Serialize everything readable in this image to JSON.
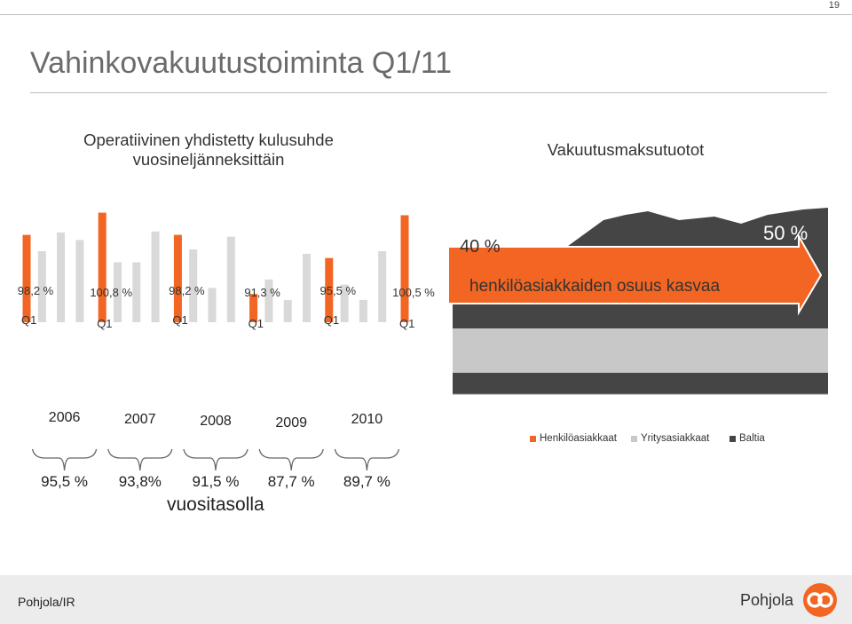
{
  "page_number": "19",
  "title": "Vahinkovakuutustoiminta Q1/11",
  "left_chart": {
    "subtitle_line1": "Operatiivinen yhdistetty kulusuhde",
    "subtitle_line2": "vuosineljänneksittäin",
    "annual_caption": "vuositasolla"
  },
  "right_chart": {
    "subtitle": "Vakuutusmaksutuotot",
    "arrow_text": "henkilöasiakkaiden osuus kasvaa",
    "share_start": "40 %",
    "share_end": "50 %"
  },
  "footer": {
    "text": "Pohjola/IR",
    "brand": "Pohjola"
  },
  "colors": {
    "q1_bar": "#f26522",
    "other_quarter_bar": "#d9d9d9",
    "arrow": "#f26522",
    "area_dark": "#454545",
    "area_light": "#c8c8c8",
    "footer_bg": "#ececec"
  },
  "chart_data": [
    {
      "type": "bar",
      "q1_labels": [
        "98,2 %",
        "100,8 %",
        "98,2 %",
        "91,3 %",
        "95,5 %",
        "100,5 %"
      ],
      "q1_tick_labels": [
        "Q1",
        "Q1",
        "Q1",
        "Q1",
        "Q1",
        "Q1"
      ],
      "years": [
        "2006",
        "2007",
        "2008",
        "2009",
        "2010"
      ],
      "annual_values": [
        "95,5 %",
        "93,8%",
        "91,5 %",
        "87,7 %",
        "89,7 %"
      ],
      "bars": [
        {
          "v": 98.2,
          "q1": true
        },
        {
          "v": 96.3
        },
        {
          "v": 98.5
        },
        {
          "v": 97.6
        },
        {
          "v": 100.8,
          "q1": true
        },
        {
          "v": 95.0
        },
        {
          "v": 95.0
        },
        {
          "v": 98.6
        },
        {
          "v": 98.2,
          "q1": true
        },
        {
          "v": 96.5
        },
        {
          "v": 92.0
        },
        {
          "v": 98.0
        },
        {
          "v": 91.3,
          "q1": true
        },
        {
          "v": 93.0
        },
        {
          "v": 90.6
        },
        {
          "v": 96.0
        },
        {
          "v": 95.5,
          "q1": true
        },
        {
          "v": 92.4
        },
        {
          "v": 90.6
        },
        {
          "v": 96.3
        },
        {
          "v": 100.5,
          "q1": true
        }
      ],
      "ylim": [
        88,
        102
      ]
    },
    {
      "type": "area",
      "x_labels": [
        "2007",
        "2010"
      ],
      "legend": [
        {
          "name": "Henkilöasiakkaat",
          "color": "#f26522"
        },
        {
          "name": "Yritysasiakkaat",
          "color": "#c8c8c8"
        },
        {
          "name": "Baltia",
          "color": "#454545"
        }
      ]
    }
  ]
}
